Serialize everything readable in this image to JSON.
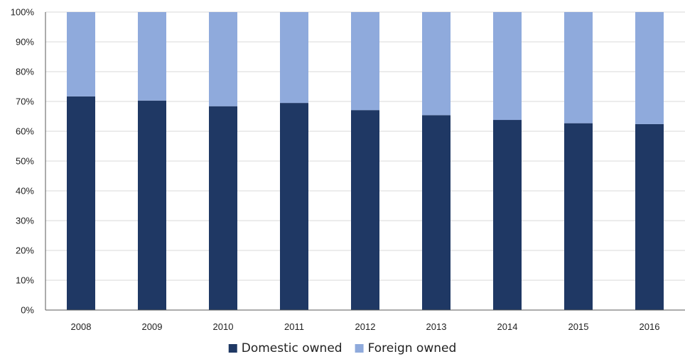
{
  "chart_data": {
    "type": "bar",
    "stacked": true,
    "percent": true,
    "categories": [
      "2008",
      "2009",
      "2010",
      "2011",
      "2012",
      "2013",
      "2014",
      "2015",
      "2016"
    ],
    "series": [
      {
        "name": "Domestic owned",
        "color": "#1f3864",
        "values": [
          71.7,
          70.3,
          68.4,
          69.5,
          67.1,
          65.4,
          63.8,
          62.7,
          62.4
        ]
      },
      {
        "name": "Foreign owned",
        "color": "#8faadc",
        "values": [
          28.3,
          29.7,
          31.6,
          30.5,
          32.9,
          34.6,
          36.2,
          37.3,
          37.6
        ]
      }
    ],
    "ylim": [
      0,
      100
    ],
    "yticks": [
      "0%",
      "10%",
      "20%",
      "30%",
      "40%",
      "50%",
      "60%",
      "70%",
      "80%",
      "90%",
      "100%"
    ],
    "grid": true,
    "legend_position": "bottom-center",
    "title": "",
    "xlabel": "",
    "ylabel": ""
  }
}
